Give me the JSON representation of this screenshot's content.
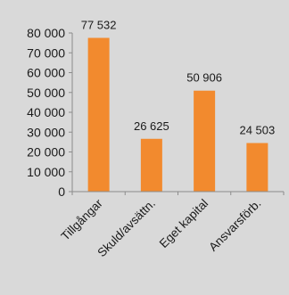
{
  "chart_data": {
    "type": "bar",
    "categories": [
      "Tillgångar",
      "Skuld/avsättn.",
      "Eget kapital",
      "Ansvarsförb."
    ],
    "values": [
      77532,
      26625,
      50906,
      24503
    ],
    "value_labels": [
      "77 532",
      "26 625",
      "50 906",
      "24 503"
    ],
    "y_ticks": [
      0,
      10000,
      20000,
      30000,
      40000,
      50000,
      60000,
      70000,
      80000
    ],
    "y_tick_labels": [
      "0",
      "10 000",
      "20 000",
      "30 000",
      "40 000",
      "50 000",
      "60 000",
      "70 000",
      "80 000"
    ],
    "ylim": [
      0,
      80000
    ],
    "title": "",
    "xlabel": "",
    "ylabel": "",
    "grid": false,
    "legend": "none",
    "bar_color": "#f28a2e",
    "axis_color": "#8c8c8c",
    "background_color": "#d9d9d9"
  }
}
